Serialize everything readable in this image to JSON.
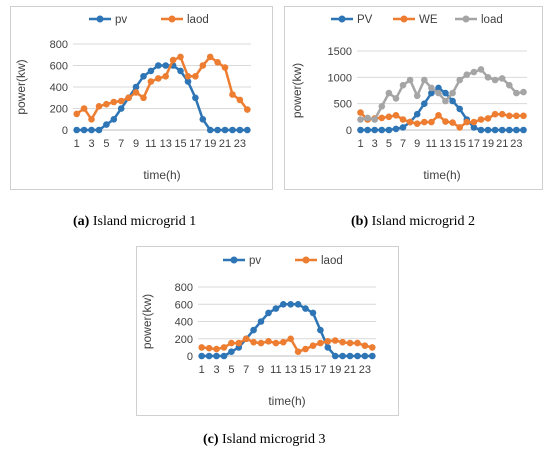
{
  "chart_data": [
    {
      "type": "line",
      "caption_letter": "(a)",
      "caption_text": " Island microgrid 1",
      "xlabel": "time(h)",
      "ylabel": "power(kw)",
      "ylim": [
        0,
        800
      ],
      "yticks": [
        0,
        200,
        400,
        600,
        800
      ],
      "x": [
        1,
        2,
        3,
        4,
        5,
        6,
        7,
        8,
        9,
        10,
        11,
        12,
        13,
        14,
        15,
        16,
        17,
        18,
        19,
        20,
        21,
        22,
        23,
        24
      ],
      "xtick_labels": [
        "1",
        "3",
        "5",
        "7",
        "9",
        "11",
        "13",
        "15",
        "17",
        "19",
        "21",
        "23"
      ],
      "grid": true,
      "legend_position": "top",
      "series": [
        {
          "name": "pv",
          "color": "#2E75B6",
          "values": [
            0,
            0,
            0,
            0,
            50,
            100,
            200,
            300,
            400,
            500,
            550,
            600,
            600,
            600,
            550,
            450,
            300,
            100,
            0,
            0,
            0,
            0,
            0,
            0
          ]
        },
        {
          "name": "laod",
          "color": "#ED7D31",
          "values": [
            150,
            200,
            100,
            220,
            240,
            260,
            270,
            300,
            350,
            300,
            450,
            480,
            500,
            650,
            680,
            500,
            500,
            600,
            680,
            630,
            580,
            330,
            280,
            190
          ]
        }
      ]
    },
    {
      "type": "line",
      "caption_letter": "(b)",
      "caption_text": " Island microgrid 2",
      "xlabel": "time(h)",
      "ylabel": "power(kw)",
      "ylim": [
        0,
        1500
      ],
      "yticks": [
        0,
        500,
        1000,
        1500
      ],
      "x": [
        1,
        2,
        3,
        4,
        5,
        6,
        7,
        8,
        9,
        10,
        11,
        12,
        13,
        14,
        15,
        16,
        17,
        18,
        19,
        20,
        21,
        22,
        23,
        24
      ],
      "xtick_labels": [
        "1",
        "3",
        "5",
        "7",
        "9",
        "11",
        "13",
        "15",
        "17",
        "19",
        "21",
        "23"
      ],
      "grid": true,
      "legend_position": "top",
      "series": [
        {
          "name": "PV",
          "color": "#2E75B6",
          "values": [
            0,
            0,
            0,
            0,
            0,
            20,
            50,
            150,
            300,
            500,
            700,
            800,
            700,
            550,
            400,
            200,
            50,
            0,
            0,
            0,
            0,
            0,
            0,
            0
          ]
        },
        {
          "name": "WE",
          "color": "#ED7D31",
          "values": [
            330,
            200,
            220,
            230,
            250,
            280,
            200,
            150,
            120,
            150,
            150,
            280,
            160,
            140,
            50,
            150,
            150,
            200,
            220,
            300,
            300,
            270,
            270,
            270
          ]
        },
        {
          "name": "load",
          "color": "#A5A5A5",
          "values": [
            200,
            230,
            200,
            450,
            700,
            600,
            850,
            950,
            650,
            950,
            800,
            700,
            550,
            700,
            950,
            1050,
            1100,
            1150,
            1000,
            950,
            980,
            850,
            700,
            720
          ]
        }
      ]
    },
    {
      "type": "line",
      "caption_letter": "(c)",
      "caption_text": " Island microgrid 3",
      "xlabel": "time(h)",
      "ylabel": "power(kw)",
      "ylim": [
        0,
        800
      ],
      "yticks": [
        0,
        200,
        400,
        600,
        800
      ],
      "x": [
        1,
        2,
        3,
        4,
        5,
        6,
        7,
        8,
        9,
        10,
        11,
        12,
        13,
        14,
        15,
        16,
        17,
        18,
        19,
        20,
        21,
        22,
        23,
        24
      ],
      "xtick_labels": [
        "1",
        "3",
        "5",
        "7",
        "9",
        "11",
        "13",
        "15",
        "17",
        "19",
        "21",
        "23"
      ],
      "grid": true,
      "legend_position": "top",
      "series": [
        {
          "name": "pv",
          "color": "#2E75B6",
          "values": [
            0,
            0,
            0,
            0,
            50,
            100,
            200,
            300,
            400,
            500,
            550,
            600,
            600,
            600,
            550,
            500,
            300,
            100,
            0,
            0,
            0,
            0,
            0,
            0
          ]
        },
        {
          "name": "laod",
          "color": "#ED7D31",
          "values": [
            100,
            90,
            80,
            100,
            150,
            150,
            200,
            160,
            150,
            170,
            150,
            160,
            200,
            50,
            80,
            120,
            150,
            170,
            180,
            160,
            150,
            150,
            120,
            100
          ]
        }
      ]
    }
  ]
}
